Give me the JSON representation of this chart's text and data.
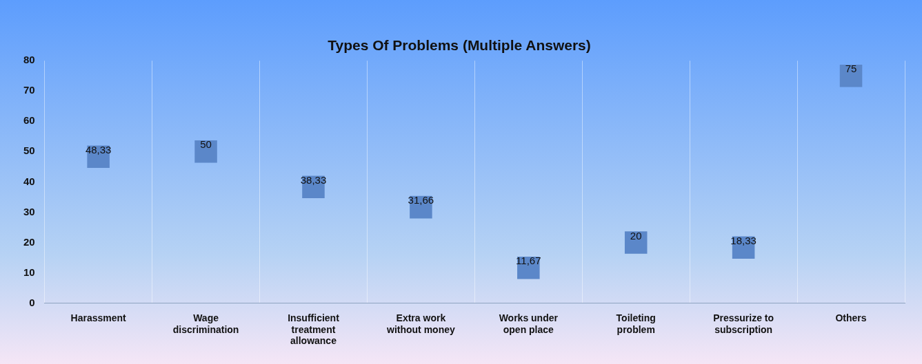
{
  "chart_data": {
    "type": "scatter",
    "title": "Types Of Problems (Multiple Answers)",
    "categories": [
      "Harassment",
      "Wage discrimination",
      "Insufficient treatment allowance",
      "Extra work without money",
      "Works under open place",
      "Toileting problem",
      "Pressurize to subscription",
      "Others"
    ],
    "values": [
      48.33,
      50,
      38.33,
      31.66,
      11.67,
      20,
      18.33,
      75
    ],
    "value_labels": [
      "48,33",
      "50",
      "38,33",
      "31,66",
      "11,67",
      "20",
      "18,33",
      "75"
    ],
    "color": "#5b87c9",
    "ylim": [
      0,
      80
    ],
    "yticks": [
      0,
      10,
      20,
      30,
      40,
      50,
      60,
      70,
      80
    ],
    "grid": "x",
    "marker": "square",
    "legend": false
  }
}
